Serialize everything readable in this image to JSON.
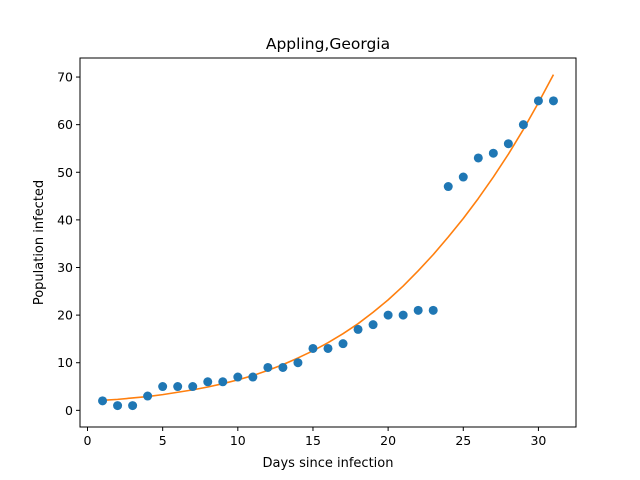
{
  "chart_data": {
    "type": "scatter",
    "title": "Appling,Georgia",
    "xlabel": "Days since infection",
    "ylabel": "Population infected",
    "xlim": [
      -0.5,
      32.5
    ],
    "ylim": [
      -3.5,
      74
    ],
    "xticks": [
      0,
      5,
      10,
      15,
      20,
      25,
      30
    ],
    "yticks": [
      0,
      10,
      20,
      30,
      40,
      50,
      60,
      70
    ],
    "grid": false,
    "colors": {
      "points": "#1f77b4",
      "fit": "#ff7f0e"
    },
    "series": [
      {
        "kind": "scatter",
        "x": [
          1,
          2,
          3,
          4,
          5,
          6,
          7,
          8,
          9,
          10,
          11,
          12,
          13,
          14,
          15,
          16,
          17,
          18,
          19,
          20,
          21,
          22,
          23,
          24,
          25,
          26,
          27,
          28,
          29,
          30,
          31
        ],
        "y": [
          2,
          1,
          1,
          3,
          5,
          5,
          5,
          6,
          6,
          7,
          7,
          9,
          9,
          10,
          13,
          13,
          14,
          17,
          18,
          20,
          20,
          21,
          21,
          47,
          49,
          53,
          54,
          56,
          60,
          65,
          65
        ]
      },
      {
        "kind": "line",
        "x": [
          1,
          2,
          3,
          4,
          5,
          6,
          7,
          8,
          9,
          10,
          11,
          12,
          13,
          14,
          15,
          16,
          17,
          18,
          19,
          20,
          21,
          22,
          23,
          24,
          25,
          26,
          27,
          28,
          29,
          30,
          31
        ],
        "y": [
          2.1,
          2.3,
          2.6,
          2.9,
          3.3,
          3.8,
          4.3,
          4.9,
          5.6,
          6.4,
          7.3,
          8.4,
          9.6,
          11.0,
          12.5,
          14.2,
          16.1,
          18.2,
          20.6,
          23.2,
          26.1,
          29.3,
          32.7,
          36.4,
          40.3,
          44.5,
          49.0,
          53.8,
          59.0,
          64.6,
          70.5
        ]
      }
    ]
  }
}
